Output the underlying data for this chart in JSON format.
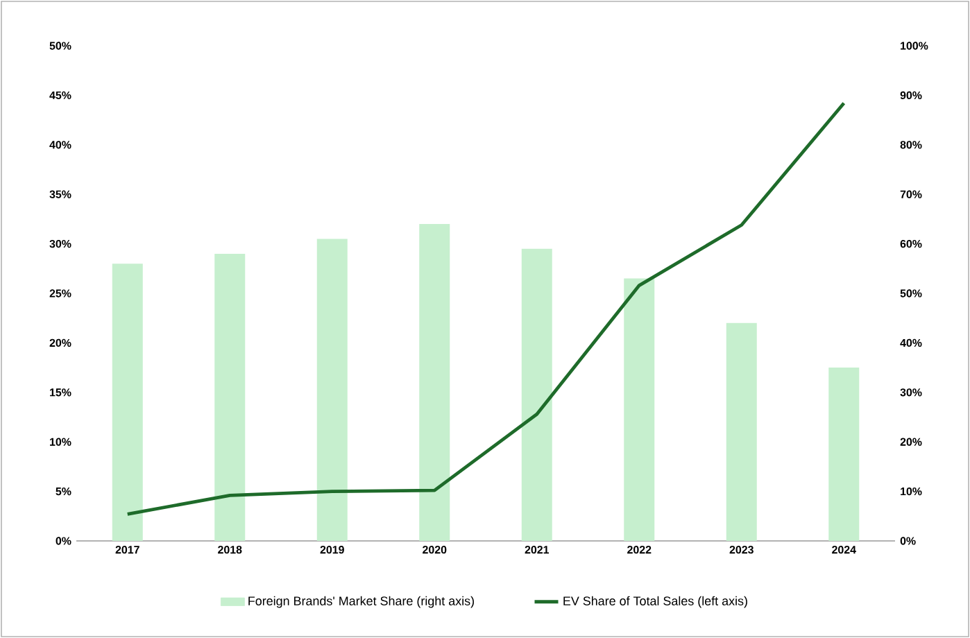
{
  "chart_data": {
    "type": "bar",
    "categories": [
      "2017",
      "2018",
      "2019",
      "2020",
      "2021",
      "2022",
      "2023",
      "2024"
    ],
    "series": [
      {
        "name": "Foreign Brands' Market Share (right axis)",
        "axis": "y2",
        "color": "#c6efce",
        "values": [
          56,
          58,
          61,
          64,
          59,
          53,
          44,
          35
        ]
      },
      {
        "name": "EV Share of Total Sales (left axis)",
        "type": "line",
        "axis": "y",
        "color": "#1e6b2a",
        "values": [
          2.7,
          4.6,
          5.0,
          5.1,
          12.8,
          25.8,
          31.9,
          44.2
        ]
      }
    ],
    "ylim": [
      0,
      50
    ],
    "yticks": [
      {
        "value": 0,
        "label": "0%"
      },
      {
        "value": 5,
        "label": "5%"
      },
      {
        "value": 10,
        "label": "10%"
      },
      {
        "value": 15,
        "label": "15%"
      },
      {
        "value": 20,
        "label": "20%"
      },
      {
        "value": 25,
        "label": "25%"
      },
      {
        "value": 30,
        "label": "30%"
      },
      {
        "value": 35,
        "label": "35%"
      },
      {
        "value": 40,
        "label": "40%"
      },
      {
        "value": 45,
        "label": "45%"
      },
      {
        "value": 50,
        "label": "50%"
      }
    ],
    "y2lim": [
      0,
      100
    ],
    "y2ticks": [
      {
        "value": 0,
        "label": "0%"
      },
      {
        "value": 10,
        "label": "10%"
      },
      {
        "value": 20,
        "label": "20%"
      },
      {
        "value": 30,
        "label": "30%"
      },
      {
        "value": 40,
        "label": "40%"
      },
      {
        "value": 50,
        "label": "50%"
      },
      {
        "value": 60,
        "label": "60%"
      },
      {
        "value": 70,
        "label": "70%"
      },
      {
        "value": 80,
        "label": "80%"
      },
      {
        "value": 90,
        "label": "90%"
      },
      {
        "value": 100,
        "label": "100%"
      }
    ],
    "legend": "bottom",
    "marker": "none",
    "line_style": "solid",
    "grid": false
  }
}
